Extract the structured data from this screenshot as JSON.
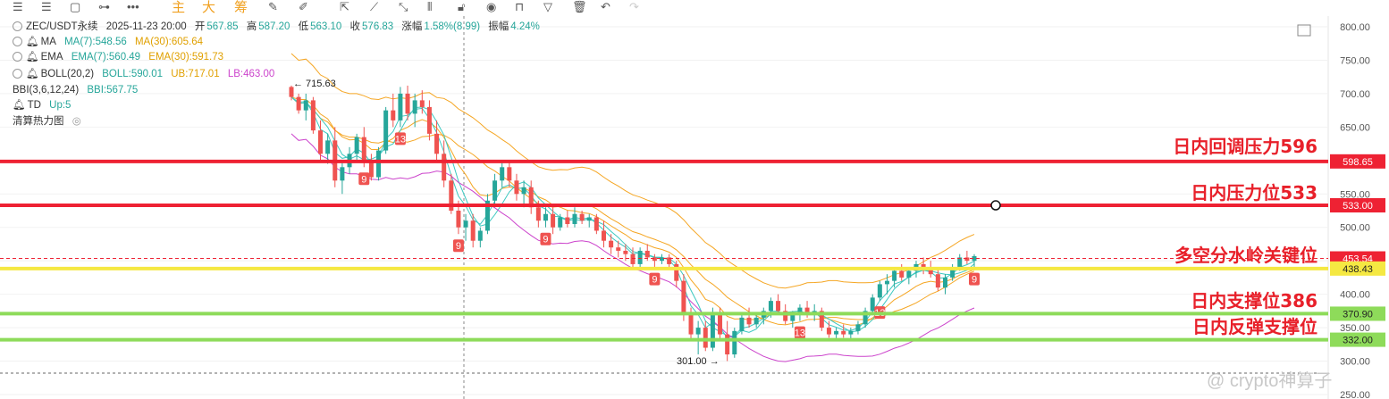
{
  "toolbar": {
    "icons": [
      "menu-icon",
      "list-icon",
      "rectangle-icon",
      "line-icon",
      "more-icon",
      "draw-icon",
      "pen-icon",
      "ruler-icon",
      "lock-icon",
      "eye-icon",
      "filter-icon",
      "delete-icon",
      "undo-icon",
      "redo-icon"
    ],
    "chip_labels": [
      "主",
      "大",
      "筹"
    ]
  },
  "header": {
    "symbol": "ZEC/USDT永续",
    "datetime": "2025-11-23 20:00",
    "open_label": "开",
    "open": "567.85",
    "high_label": "高",
    "high": "587.20",
    "low_label": "低",
    "low": "563.10",
    "close_label": "收",
    "close": "576.83",
    "change_label": "涨幅",
    "change": "1.58%(8.99)",
    "amp_label": "振幅",
    "amp": "4.24%"
  },
  "indicators": {
    "ma": {
      "name": "MA",
      "v1": "MA(7):548.56",
      "v2": "MA(30):605.64"
    },
    "ema": {
      "name": "EMA",
      "v1": "EMA(7):560.49",
      "v2": "EMA(30):591.73"
    },
    "boll": {
      "name": "BOLL(20,2)",
      "v1": "BOLL:590.01",
      "v2": "UB:717.01",
      "v3": "LB:463.00"
    },
    "bbi": {
      "name": "BBI(3,6,12,24)",
      "v1": "BBI:567.75"
    },
    "td": {
      "name": "TD",
      "v1": "Up:5"
    },
    "heatmap": "清算热力图"
  },
  "annotations": [
    "日内回调压力596",
    "日内压力位533",
    "多空分水岭关键位",
    "日内支撑位386",
    "日内反弹支撑位"
  ],
  "watermark": "@ crypto神算子",
  "colors": {
    "up": "#26a69a",
    "down": "#ef5350",
    "red_line": "#ee2233",
    "yellow_line": "#f5e842",
    "green_line": "#8edb5a",
    "ma_orange": "#f5a623",
    "ma_teal": "#3cc8c0",
    "lb_magenta": "#cc44cc"
  },
  "chart_data": {
    "type": "candlestick",
    "y_axis_ticks": [
      "800.00",
      "750.00",
      "700.00",
      "650.00",
      "600.00",
      "550.00",
      "500.00",
      "450.00",
      "400.00",
      "350.00",
      "300.00",
      "250.00"
    ],
    "ylim": [
      250,
      810
    ],
    "price_lines": [
      {
        "value": 598.65,
        "label": "598.65",
        "color": "red"
      },
      {
        "value": 533.0,
        "label": "533.00",
        "color": "red"
      },
      {
        "value": 453.54,
        "label": "453.54",
        "color": "dashed-red"
      },
      {
        "value": 438.43,
        "label": "438.43",
        "color": "yellow"
      },
      {
        "value": 370.9,
        "label": "370.90",
        "color": "green"
      },
      {
        "value": 332.0,
        "label": "332.00",
        "color": "green"
      }
    ],
    "high_marker": {
      "label": "← 715.63",
      "value": 715.63
    },
    "low_marker": {
      "label": "301.00 →",
      "value": 301.0
    },
    "td_labels": [
      "9",
      "13",
      "9",
      "9",
      "9",
      "13",
      "13",
      "9"
    ],
    "candles": [
      [
        710,
        712,
        690,
        695
      ],
      [
        695,
        700,
        670,
        675
      ],
      [
        675,
        700,
        660,
        690
      ],
      [
        690,
        695,
        640,
        645
      ],
      [
        645,
        660,
        600,
        610
      ],
      [
        610,
        640,
        595,
        630
      ],
      [
        630,
        650,
        560,
        570
      ],
      [
        570,
        600,
        550,
        590
      ],
      [
        590,
        620,
        580,
        610
      ],
      [
        610,
        640,
        600,
        635
      ],
      [
        635,
        650,
        590,
        600
      ],
      [
        600,
        610,
        570,
        575
      ],
      [
        575,
        620,
        570,
        615
      ],
      [
        615,
        680,
        610,
        675
      ],
      [
        675,
        700,
        650,
        660
      ],
      [
        660,
        710,
        650,
        700
      ],
      [
        700,
        712,
        660,
        670
      ],
      [
        670,
        700,
        650,
        690
      ],
      [
        690,
        705,
        670,
        680
      ],
      [
        680,
        690,
        630,
        640
      ],
      [
        640,
        660,
        600,
        610
      ],
      [
        610,
        630,
        560,
        570
      ],
      [
        570,
        580,
        520,
        525
      ],
      [
        525,
        540,
        490,
        500
      ],
      [
        500,
        520,
        480,
        510
      ],
      [
        510,
        520,
        470,
        480
      ],
      [
        480,
        500,
        470,
        495
      ],
      [
        495,
        550,
        490,
        540
      ],
      [
        540,
        580,
        530,
        570
      ],
      [
        570,
        600,
        560,
        590
      ],
      [
        590,
        600,
        560,
        570
      ],
      [
        570,
        580,
        540,
        550
      ],
      [
        550,
        570,
        530,
        560
      ],
      [
        560,
        570,
        520,
        530
      ],
      [
        530,
        540,
        500,
        510
      ],
      [
        510,
        530,
        500,
        520
      ],
      [
        520,
        530,
        490,
        500
      ],
      [
        500,
        520,
        495,
        515
      ],
      [
        515,
        525,
        500,
        505
      ],
      [
        505,
        530,
        500,
        520
      ],
      [
        520,
        525,
        505,
        510
      ],
      [
        510,
        520,
        500,
        515
      ],
      [
        515,
        520,
        490,
        495
      ],
      [
        495,
        510,
        470,
        480
      ],
      [
        480,
        490,
        460,
        470
      ],
      [
        470,
        480,
        455,
        465
      ],
      [
        465,
        475,
        450,
        460
      ],
      [
        460,
        470,
        440,
        445
      ],
      [
        445,
        470,
        440,
        465
      ],
      [
        465,
        475,
        450,
        455
      ],
      [
        455,
        460,
        440,
        450
      ],
      [
        450,
        460,
        445,
        455
      ],
      [
        455,
        460,
        440,
        445
      ],
      [
        445,
        450,
        410,
        420
      ],
      [
        420,
        430,
        360,
        370
      ],
      [
        370,
        380,
        330,
        340
      ],
      [
        340,
        360,
        310,
        350
      ],
      [
        350,
        360,
        315,
        320
      ],
      [
        320,
        380,
        315,
        370
      ],
      [
        370,
        380,
        330,
        340
      ],
      [
        340,
        360,
        300,
        310
      ],
      [
        310,
        350,
        305,
        345
      ],
      [
        345,
        370,
        340,
        365
      ],
      [
        365,
        380,
        350,
        355
      ],
      [
        355,
        370,
        350,
        365
      ],
      [
        365,
        380,
        355,
        375
      ],
      [
        375,
        395,
        365,
        390
      ],
      [
        390,
        400,
        370,
        375
      ],
      [
        375,
        385,
        355,
        360
      ],
      [
        360,
        375,
        350,
        370
      ],
      [
        370,
        385,
        360,
        380
      ],
      [
        380,
        390,
        365,
        370
      ],
      [
        370,
        385,
        360,
        375
      ],
      [
        375,
        380,
        345,
        350
      ],
      [
        350,
        360,
        335,
        340
      ],
      [
        340,
        350,
        330,
        345
      ],
      [
        345,
        355,
        335,
        340
      ],
      [
        340,
        350,
        332,
        345
      ],
      [
        345,
        360,
        340,
        355
      ],
      [
        355,
        380,
        350,
        375
      ],
      [
        375,
        400,
        370,
        395
      ],
      [
        395,
        420,
        390,
        415
      ],
      [
        415,
        430,
        400,
        420
      ],
      [
        420,
        440,
        410,
        435
      ],
      [
        435,
        445,
        420,
        425
      ],
      [
        425,
        440,
        415,
        435
      ],
      [
        435,
        450,
        425,
        445
      ],
      [
        445,
        455,
        430,
        440
      ],
      [
        440,
        450,
        425,
        430
      ],
      [
        430,
        440,
        405,
        410
      ],
      [
        410,
        430,
        400,
        425
      ],
      [
        425,
        445,
        420,
        440
      ],
      [
        440,
        460,
        435,
        455
      ],
      [
        455,
        465,
        445,
        450
      ],
      [
        450,
        460,
        440,
        457
      ]
    ]
  }
}
